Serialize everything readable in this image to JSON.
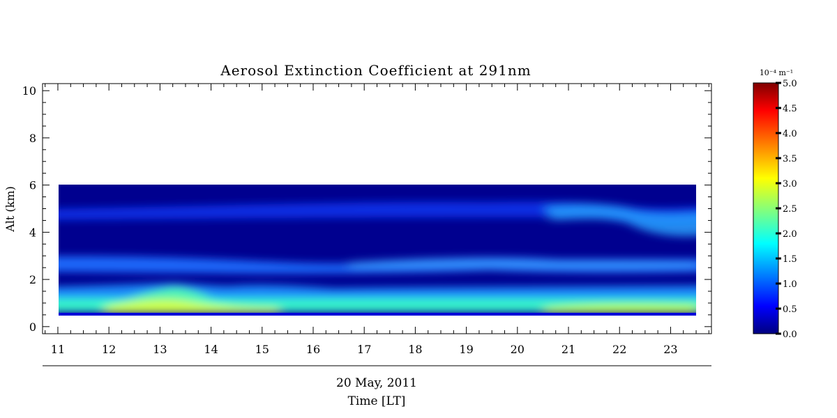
{
  "chart_data": {
    "type": "heatmap",
    "title": "Aerosol Extinction Coefficient at 291nm",
    "ylabel": "Alt (km)",
    "date_label": "20 May, 2011",
    "xlabel": "Time [LT]",
    "x_ticks": [
      "11",
      "12",
      "13",
      "14",
      "15",
      "16",
      "17",
      "18",
      "19",
      "20",
      "21",
      "22",
      "23"
    ],
    "y_ticks": [
      "0",
      "2",
      "4",
      "6",
      "8",
      "10"
    ],
    "xlim": [
      10.7,
      23.8
    ],
    "ylim": [
      -0.3,
      10.3
    ],
    "data_x_range": [
      10.72,
      23.22
    ],
    "data_y_range": [
      0.55,
      6.0
    ],
    "colorbar": {
      "units": "10⁻⁴ m⁻¹",
      "range": [
        0.0,
        5.0
      ],
      "tick_labels": [
        "0.0",
        "0.5",
        "1.0",
        "1.5",
        "2.0",
        "2.5",
        "3.0",
        "3.5",
        "4.0",
        "4.5",
        "5.0"
      ],
      "colormap": [
        "#00007f",
        "#0000ff",
        "#00ffff",
        "#ffff00",
        "#ff0000",
        "#7f0000"
      ]
    },
    "layers_km": [
      {
        "feature": "surface layer",
        "altitude": [
          0.6,
          1.0
        ],
        "value": [
          2.5,
          3.1
        ]
      },
      {
        "feature": "lower aerosol layer",
        "altitude": [
          1.0,
          1.8
        ],
        "value": [
          1.2,
          2.7
        ]
      },
      {
        "feature": "mid aerosol layer",
        "altitude": [
          2.3,
          3.0
        ],
        "value": [
          1.1,
          1.7
        ]
      },
      {
        "feature": "upper aerosol layer",
        "altitude": [
          4.2,
          5.2
        ],
        "value": [
          0.8,
          1.9
        ]
      }
    ]
  }
}
